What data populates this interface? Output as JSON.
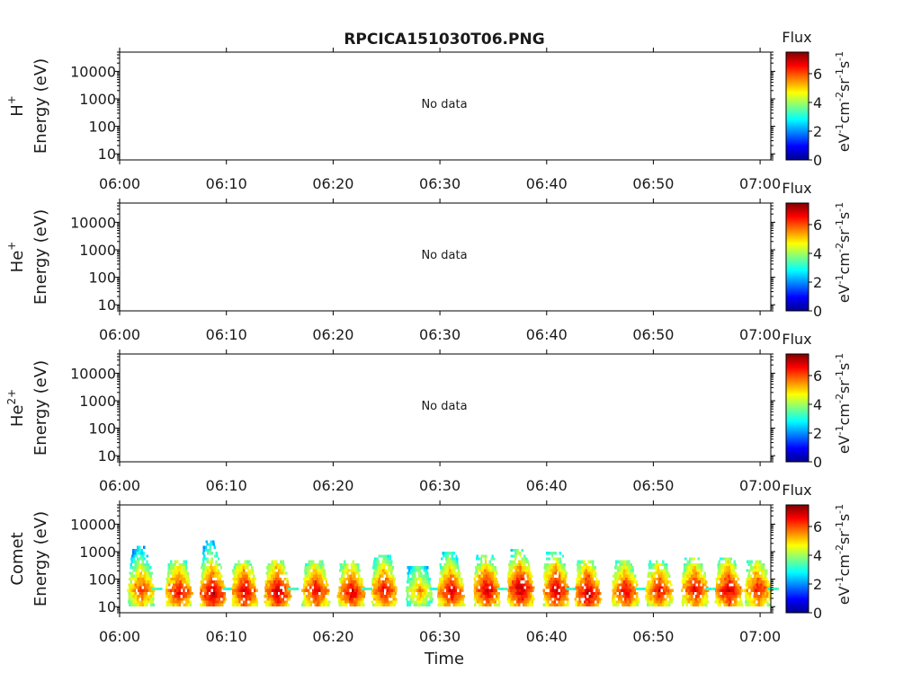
{
  "figure_title": "RPCICA151030T06.PNG",
  "xlabel": "Time",
  "no_data_label": "No data",
  "colorbar": {
    "title": "Flux",
    "unit_parts": [
      "eV",
      "-1",
      "cm",
      "-2",
      "sr",
      "-1",
      "s",
      "-1"
    ],
    "ticks": [
      "0",
      "2",
      "4",
      "6"
    ],
    "range": [
      0,
      7.5
    ],
    "colormap": "jet",
    "colormap_colors": [
      "#00008f",
      "#0000ff",
      "#007fff",
      "#00ffff",
      "#7fff7f",
      "#ffff00",
      "#ff7f00",
      "#ff0000",
      "#7f0000"
    ]
  },
  "chart_data": [
    {
      "type": "heatmap",
      "name": "H+",
      "ylabel_species": "H",
      "ylabel_sup": "+",
      "ylabel_unit": "Energy (eV)",
      "x_ticks": [
        "06:00",
        "06:10",
        "06:20",
        "06:30",
        "06:40",
        "06:50",
        "07:00"
      ],
      "x_range": [
        "06:00",
        "07:01"
      ],
      "y_scale": "log",
      "y_ticks": [
        "10",
        "100",
        "1000",
        "10000"
      ],
      "y_range": [
        6,
        50000
      ],
      "has_data": false,
      "note": "No data"
    },
    {
      "type": "heatmap",
      "name": "He+",
      "ylabel_species": "He",
      "ylabel_sup": "+",
      "ylabel_unit": "Energy (eV)",
      "x_ticks": [
        "06:00",
        "06:10",
        "06:20",
        "06:30",
        "06:40",
        "06:50",
        "07:00"
      ],
      "x_range": [
        "06:00",
        "07:01"
      ],
      "y_scale": "log",
      "y_ticks": [
        "10",
        "100",
        "1000",
        "10000"
      ],
      "y_range": [
        6,
        50000
      ],
      "has_data": false,
      "note": "No data"
    },
    {
      "type": "heatmap",
      "name": "He2+",
      "ylabel_species": "He",
      "ylabel_sup": "2+",
      "ylabel_unit": "Energy (eV)",
      "x_ticks": [
        "06:00",
        "06:10",
        "06:20",
        "06:30",
        "06:40",
        "06:50",
        "07:00"
      ],
      "x_range": [
        "06:00",
        "07:01"
      ],
      "y_scale": "log",
      "y_ticks": [
        "10",
        "100",
        "1000",
        "10000"
      ],
      "y_range": [
        6,
        50000
      ],
      "has_data": false,
      "note": "No data"
    },
    {
      "type": "heatmap",
      "name": "Comet",
      "ylabel_species": "Comet",
      "ylabel_sup": "",
      "ylabel_unit": "Energy (eV)",
      "x_ticks": [
        "06:00",
        "06:10",
        "06:20",
        "06:30",
        "06:40",
        "06:50",
        "07:00"
      ],
      "x_range": [
        "06:00",
        "07:01"
      ],
      "y_scale": "log",
      "y_ticks": [
        "10",
        "100",
        "1000",
        "10000"
      ],
      "y_range": [
        6,
        50000
      ],
      "has_data": true,
      "bursts": [
        {
          "time": "06:02:00",
          "flux_peak": 6.3,
          "e_peak": 50,
          "e_top": 2000
        },
        {
          "time": "06:05:30",
          "flux_peak": 6.8,
          "e_peak": 40,
          "e_top": 600
        },
        {
          "time": "06:08:40",
          "flux_peak": 7.2,
          "e_peak": 35,
          "e_top": 3000
        },
        {
          "time": "06:11:40",
          "flux_peak": 7.0,
          "e_peak": 40,
          "e_top": 600
        },
        {
          "time": "06:14:45",
          "flux_peak": 7.1,
          "e_peak": 40,
          "e_top": 500
        },
        {
          "time": "06:18:20",
          "flux_peak": 6.8,
          "e_peak": 45,
          "e_top": 500
        },
        {
          "time": "06:21:40",
          "flux_peak": 6.9,
          "e_peak": 40,
          "e_top": 500
        },
        {
          "time": "06:24:45",
          "flux_peak": 6.8,
          "e_peak": 45,
          "e_top": 900
        },
        {
          "time": "06:28:00",
          "flux_peak": 5.6,
          "e_peak": 40,
          "e_top": 300
        },
        {
          "time": "06:31:00",
          "flux_peak": 6.9,
          "e_peak": 40,
          "e_top": 1200
        },
        {
          "time": "06:34:20",
          "flux_peak": 7.0,
          "e_peak": 45,
          "e_top": 800
        },
        {
          "time": "06:37:30",
          "flux_peak": 7.2,
          "e_peak": 50,
          "e_top": 1500
        },
        {
          "time": "06:40:50",
          "flux_peak": 7.1,
          "e_peak": 45,
          "e_top": 1200
        },
        {
          "time": "06:43:50",
          "flux_peak": 7.2,
          "e_peak": 35,
          "e_top": 500
        },
        {
          "time": "06:47:20",
          "flux_peak": 6.8,
          "e_peak": 40,
          "e_top": 500
        },
        {
          "time": "06:50:30",
          "flux_peak": 6.7,
          "e_peak": 45,
          "e_top": 600
        },
        {
          "time": "06:53:50",
          "flux_peak": 6.8,
          "e_peak": 50,
          "e_top": 700
        },
        {
          "time": "06:57:00",
          "flux_peak": 7.0,
          "e_peak": 45,
          "e_top": 700
        },
        {
          "time": "06:59:45",
          "flux_peak": 6.6,
          "e_peak": 50,
          "e_top": 500
        }
      ]
    }
  ]
}
